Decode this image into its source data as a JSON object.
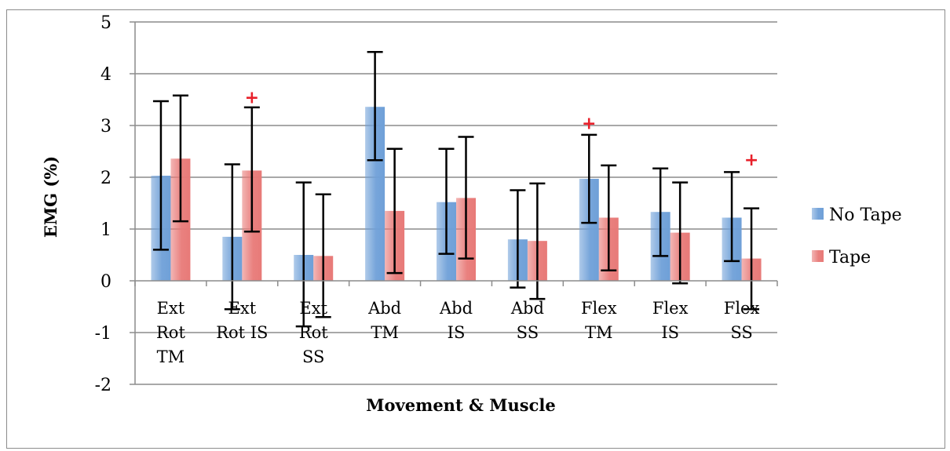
{
  "chart_data": {
    "type": "bar",
    "title": "",
    "xlabel": "Movement & Muscle",
    "ylabel": "EMG (%)",
    "ylim": [
      -2,
      5
    ],
    "yticks": [
      "-2",
      "-1",
      "0",
      "1",
      "2",
      "3",
      "4",
      "5"
    ],
    "grid": true,
    "legend_position": "right",
    "categories": [
      [
        "Ext",
        "Rot",
        "TM"
      ],
      [
        "Ext",
        "Rot IS"
      ],
      [
        "Ext",
        "Rot",
        "SS"
      ],
      [
        "Abd",
        "TM"
      ],
      [
        "Abd",
        "IS"
      ],
      [
        "Abd",
        "SS"
      ],
      [
        "Flex",
        "TM"
      ],
      [
        "Flex",
        "IS"
      ],
      [
        "Flex",
        "SS"
      ]
    ],
    "series": [
      {
        "name": "No Tape",
        "color": "#6fa0d8",
        "values": [
          2.03,
          0.85,
          0.5,
          3.36,
          1.52,
          0.8,
          1.97,
          1.33,
          1.22
        ],
        "error_low": [
          0.6,
          -0.55,
          -0.88,
          2.33,
          0.52,
          -0.13,
          1.12,
          0.48,
          0.38
        ],
        "error_high": [
          3.47,
          2.25,
          1.9,
          4.42,
          2.55,
          1.75,
          2.82,
          2.17,
          2.1
        ]
      },
      {
        "name": "Tape",
        "color": "#e87a78",
        "values": [
          2.36,
          2.13,
          0.48,
          1.35,
          1.6,
          0.77,
          1.22,
          0.93,
          0.43
        ],
        "error_low": [
          1.15,
          0.95,
          -0.7,
          0.15,
          0.43,
          -0.35,
          0.2,
          -0.05,
          -0.55
        ],
        "error_high": [
          3.58,
          3.35,
          1.67,
          2.55,
          2.78,
          1.88,
          2.23,
          1.9,
          1.4
        ]
      }
    ],
    "annotations": [
      {
        "text": "+",
        "category_index": 1,
        "series": "Tape",
        "y": 3.55
      },
      {
        "text": "+",
        "category_index": 6,
        "series": "No Tape",
        "y": 3.05
      },
      {
        "text": "+",
        "category_index": 8,
        "series": "Tape",
        "y": 2.35
      }
    ]
  }
}
